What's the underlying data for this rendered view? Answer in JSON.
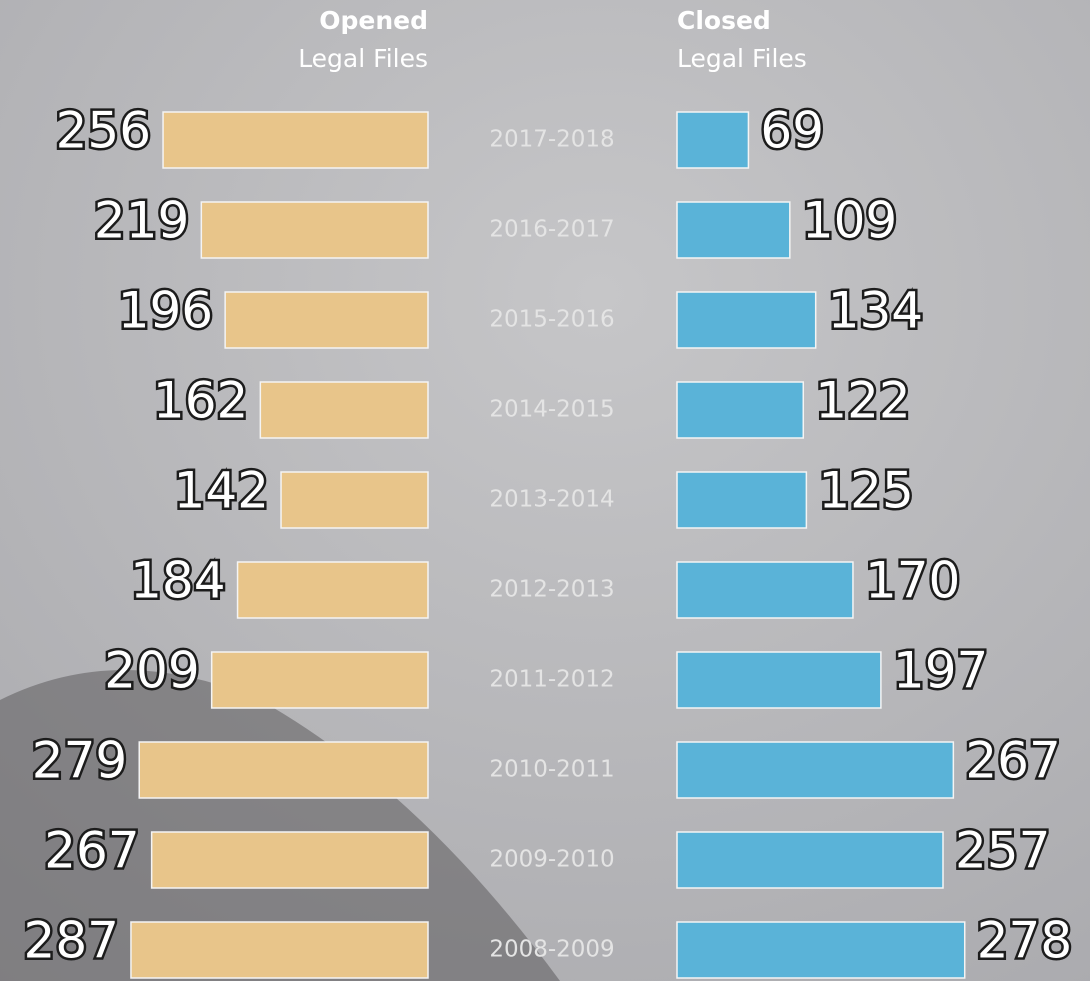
{
  "chart_data": {
    "type": "butterfly",
    "categories": [
      "2017-2018",
      "2016-2017",
      "2015-2016",
      "2014-2015",
      "2013-2014",
      "2012-2013",
      "2011-2012",
      "2010-2011",
      "2009-2010",
      "2008-2009"
    ],
    "series": [
      {
        "name": "Opened",
        "subtitle": "Legal Files",
        "color": "#e8c58a",
        "values": [
          256,
          219,
          196,
          162,
          142,
          184,
          209,
          279,
          267,
          287
        ]
      },
      {
        "name": "Closed",
        "subtitle": "Legal Files",
        "color": "#5ab3d8",
        "values": [
          69,
          109,
          134,
          122,
          125,
          170,
          197,
          267,
          257,
          278
        ]
      }
    ]
  }
}
